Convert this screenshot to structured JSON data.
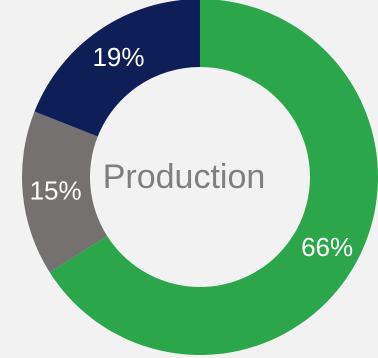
{
  "chart_data": {
    "type": "pie",
    "title": "",
    "center_text": "Production",
    "slices": [
      {
        "label": "66%",
        "value": 66,
        "color": "#2ba64b"
      },
      {
        "label": "15%",
        "value": 15,
        "color": "#767171"
      },
      {
        "label": "19%",
        "value": 19,
        "color": "#0e1f58"
      }
    ],
    "legend": "none",
    "grid": false
  }
}
